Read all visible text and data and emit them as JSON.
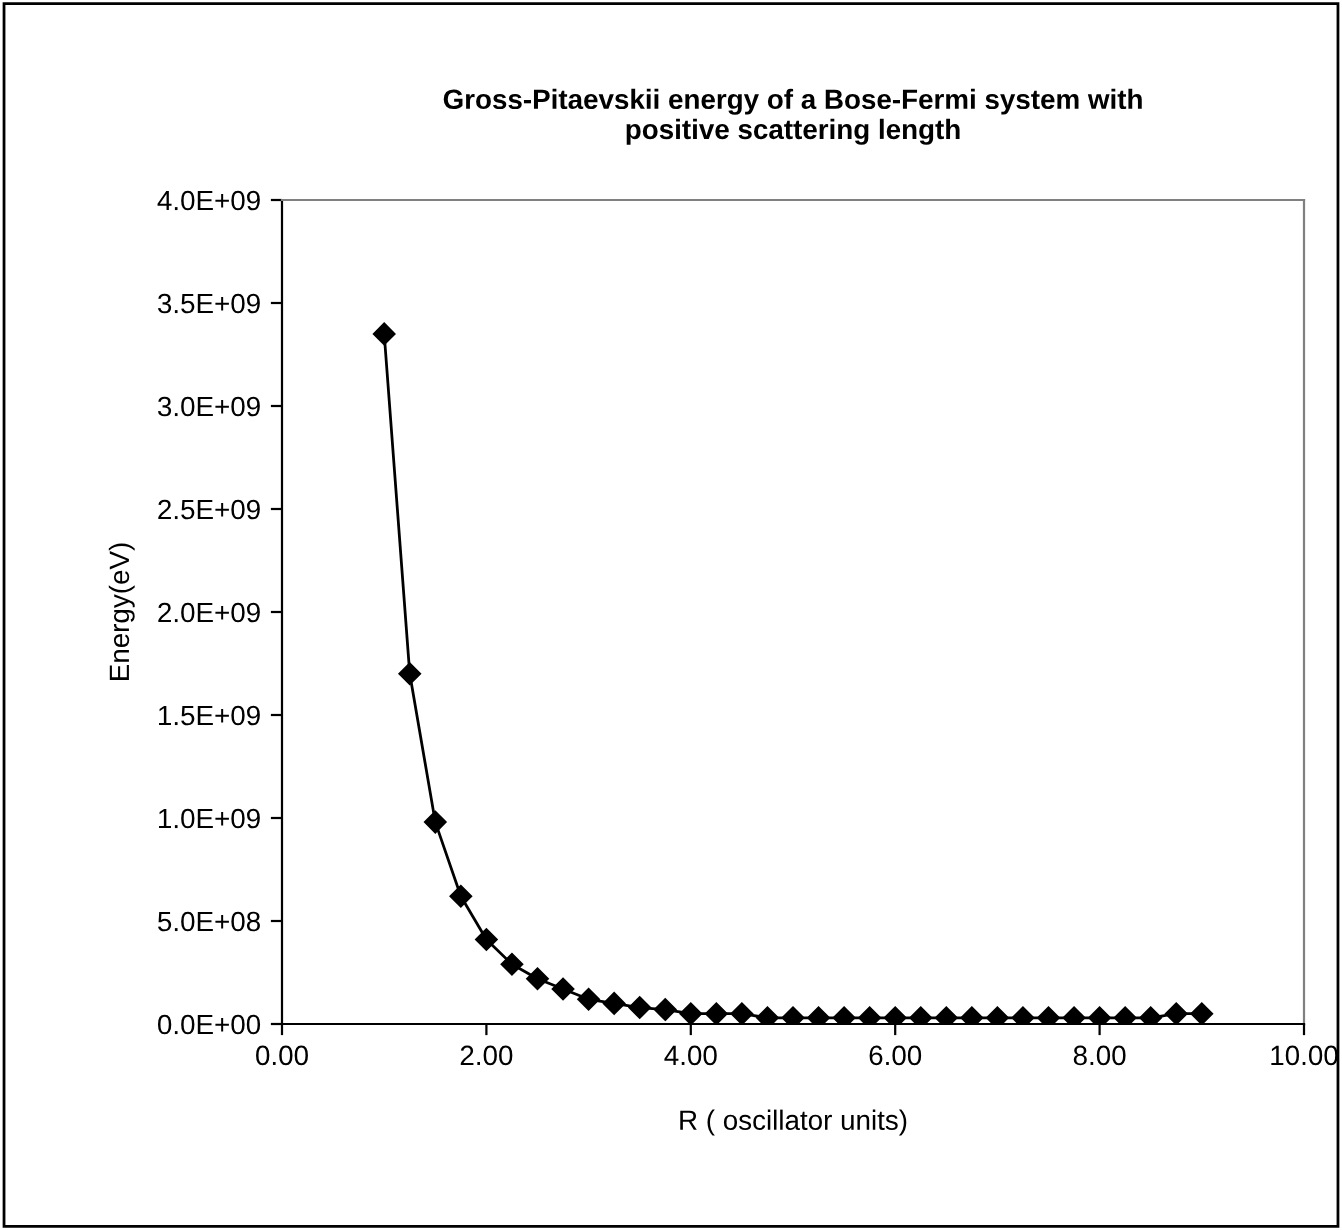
{
  "chart_data": {
    "type": "line",
    "title": "Gross-Pitaevskii energy of a Bose-Fermi system with\npositive scattering length",
    "xlabel": "R ( oscillator units)",
    "ylabel": "Energy(eV)",
    "x": [
      1.0,
      1.25,
      1.5,
      1.75,
      2.0,
      2.25,
      2.5,
      2.75,
      3.0,
      3.25,
      3.5,
      3.75,
      4.0,
      4.25,
      4.5,
      4.75,
      5.0,
      5.25,
      5.5,
      5.75,
      6.0,
      6.25,
      6.5,
      6.75,
      7.0,
      7.25,
      7.5,
      7.75,
      8.0,
      8.25,
      8.5,
      8.75,
      9.0
    ],
    "series": [
      {
        "color": "#000000",
        "values": [
          3350000000.0,
          1700000000.0,
          980000000.0,
          620000000.0,
          410000000.0,
          290000000.0,
          220000000.0,
          170000000.0,
          120000000.0,
          100000000.0,
          80000000.0,
          70000000.0,
          50000000.0,
          50000000.0,
          50000000.0,
          30000000.0,
          30000000.0,
          30000000.0,
          30000000.0,
          30000000.0,
          30000000.0,
          30000000.0,
          30000000.0,
          30000000.0,
          30000000.0,
          30000000.0,
          30000000.0,
          30000000.0,
          30000000.0,
          30000000.0,
          30000000.0,
          50000000.0,
          50000000.0
        ]
      }
    ],
    "xlim": [
      0,
      10
    ],
    "ylim": [
      0,
      4000000000.0
    ],
    "xticks": [
      {
        "value": 0,
        "label": "0.00"
      },
      {
        "value": 2,
        "label": "2.00"
      },
      {
        "value": 4,
        "label": "4.00"
      },
      {
        "value": 6,
        "label": "6.00"
      },
      {
        "value": 8,
        "label": "8.00"
      },
      {
        "value": 10,
        "label": "10.00"
      }
    ],
    "yticks": [
      {
        "value": 0,
        "label": "0.0E+00"
      },
      {
        "value": 500000000.0,
        "label": "5.0E+08"
      },
      {
        "value": 1000000000.0,
        "label": "1.0E+09"
      },
      {
        "value": 1500000000.0,
        "label": "1.5E+09"
      },
      {
        "value": 2000000000.0,
        "label": "2.0E+09"
      },
      {
        "value": 2500000000.0,
        "label": "2.5E+09"
      },
      {
        "value": 3000000000.0,
        "label": "3.0E+09"
      },
      {
        "value": 3500000000.0,
        "label": "3.5E+09"
      },
      {
        "value": 4000000000.0,
        "label": "4.0E+09"
      }
    ],
    "grid": false,
    "legend": false,
    "marker": "diamond",
    "line_style": "solid"
  }
}
